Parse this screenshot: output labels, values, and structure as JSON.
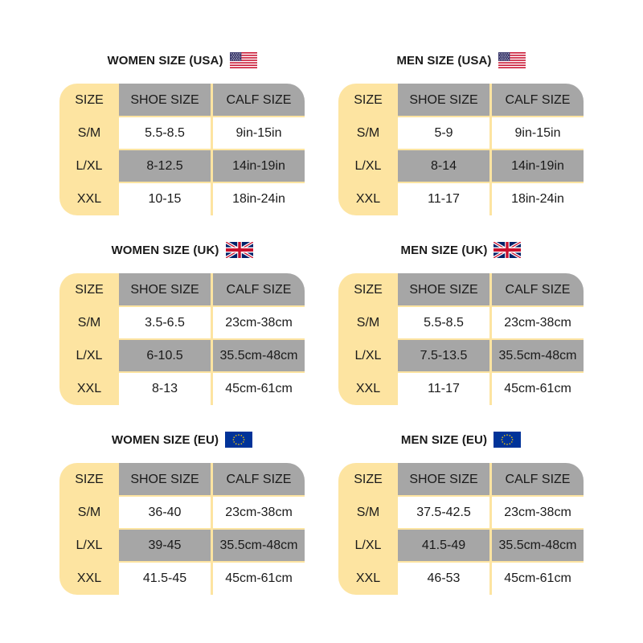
{
  "colors": {
    "accent": "#fde4a1",
    "header_gray": "#a6a6a6",
    "text": "#1a1a1a"
  },
  "panels": [
    {
      "title": "WOMEN SIZE (USA)",
      "flag_icon": "us-flag-icon",
      "header": [
        "SIZE",
        "SHOE SIZE",
        "CALF SIZE"
      ],
      "rows": [
        [
          "S/M",
          "5.5-8.5",
          "9in-15in"
        ],
        [
          "L/XL",
          "8-12.5",
          "14in-19in"
        ],
        [
          "XXL",
          "10-15",
          "18in-24in"
        ]
      ]
    },
    {
      "title": "MEN SIZE (USA)",
      "flag_icon": "us-flag-icon",
      "header": [
        "SIZE",
        "SHOE SIZE",
        "CALF SIZE"
      ],
      "rows": [
        [
          "S/M",
          "5-9",
          "9in-15in"
        ],
        [
          "L/XL",
          "8-14",
          "14in-19in"
        ],
        [
          "XXL",
          "11-17",
          "18in-24in"
        ]
      ]
    },
    {
      "title": "WOMEN SIZE (UK)",
      "flag_icon": "uk-flag-icon",
      "header": [
        "SIZE",
        "SHOE SIZE",
        "CALF SIZE"
      ],
      "rows": [
        [
          "S/M",
          "3.5-6.5",
          "23cm-38cm"
        ],
        [
          "L/XL",
          "6-10.5",
          "35.5cm-48cm"
        ],
        [
          "XXL",
          "8-13",
          "45cm-61cm"
        ]
      ]
    },
    {
      "title": "MEN SIZE (UK)",
      "flag_icon": "uk-flag-icon",
      "header": [
        "SIZE",
        "SHOE SIZE",
        "CALF SIZE"
      ],
      "rows": [
        [
          "S/M",
          "5.5-8.5",
          "23cm-38cm"
        ],
        [
          "L/XL",
          "7.5-13.5",
          "35.5cm-48cm"
        ],
        [
          "XXL",
          "11-17",
          "45cm-61cm"
        ]
      ]
    },
    {
      "title": "WOMEN SIZE (EU)",
      "flag_icon": "eu-flag-icon",
      "header": [
        "SIZE",
        "SHOE SIZE",
        "CALF SIZE"
      ],
      "rows": [
        [
          "S/M",
          "36-40",
          "23cm-38cm"
        ],
        [
          "L/XL",
          "39-45",
          "35.5cm-48cm"
        ],
        [
          "XXL",
          "41.5-45",
          "45cm-61cm"
        ]
      ]
    },
    {
      "title": "MEN SIZE (EU)",
      "flag_icon": "eu-flag-icon",
      "header": [
        "SIZE",
        "SHOE SIZE",
        "CALF SIZE"
      ],
      "rows": [
        [
          "S/M",
          "37.5-42.5",
          "23cm-38cm"
        ],
        [
          "L/XL",
          "41.5-49",
          "35.5cm-48cm"
        ],
        [
          "XXL",
          "46-53",
          "45cm-61cm"
        ]
      ]
    }
  ]
}
